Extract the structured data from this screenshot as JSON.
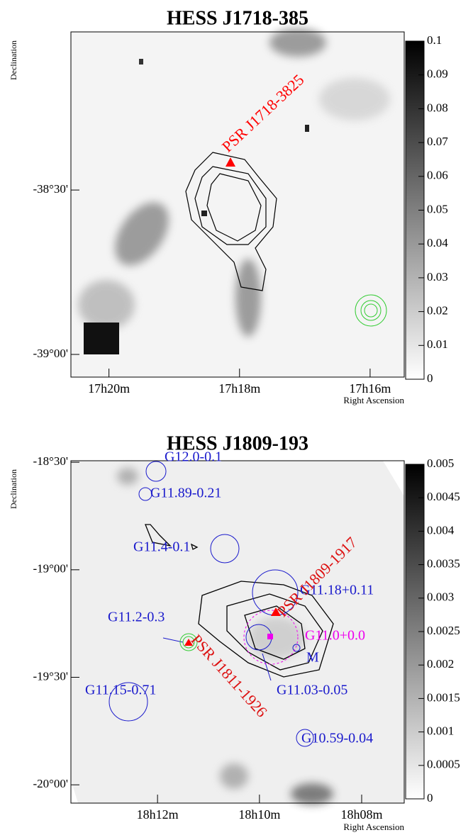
{
  "chart_data": [
    {
      "type": "image",
      "title": "HESS J1718-385",
      "xlabel": "Right Ascension",
      "ylabel": "Declination",
      "xlim": [
        17.343,
        17.258
      ],
      "xticks": [
        {
          "value": 17.3333,
          "label": "17h20m"
        },
        {
          "value": 17.3,
          "label": "17h18m"
        },
        {
          "value": 17.2667,
          "label": "17h16m"
        }
      ],
      "ylim": [
        -39.069,
        -38.019
      ],
      "yticks": [
        {
          "value": -39,
          "label": "-39°00'"
        },
        {
          "value": -38.5,
          "label": "-38°30'"
        }
      ],
      "zlim": [
        0,
        0.1
      ],
      "zticks": [
        0,
        0.01,
        0.02,
        0.03,
        0.04,
        0.05,
        0.06,
        0.07,
        0.08,
        0.09,
        0.1
      ],
      "annotations": [
        {
          "text": "PSR J1718-3825",
          "color": "#ff0000"
        }
      ]
    },
    {
      "type": "image",
      "title": "HESS J1809-193",
      "xlabel": "Right Ascension",
      "ylabel": "Declination",
      "xlim": [
        18.2283,
        18.1194
      ],
      "xticks": [
        {
          "value": 18.2,
          "label": "18h12m"
        },
        {
          "value": 18.1667,
          "label": "18h10m"
        },
        {
          "value": 18.1333,
          "label": "18h08m"
        }
      ],
      "ylim": [
        -20.085,
        -18.493
      ],
      "yticks": [
        {
          "value": -20,
          "label": "-20°00'"
        },
        {
          "value": -19.5,
          "label": "-19°30'"
        },
        {
          "value": -19,
          "label": "-19°00'"
        },
        {
          "value": -18.5,
          "label": "-18°30'"
        }
      ],
      "zlim": [
        0,
        0.005
      ],
      "zticks": [
        0,
        0.0005,
        0.001,
        0.0015,
        0.002,
        0.0025,
        0.003,
        0.0035,
        0.004,
        0.0045,
        0.005
      ],
      "annotations": [
        {
          "text": "G12.0-0.1",
          "color": "#1a1acc"
        },
        {
          "text": "G11.89-0.21",
          "color": "#1a1acc"
        },
        {
          "text": "G11.4-0.1",
          "color": "#1a1acc"
        },
        {
          "text": "G11.18+0.11",
          "color": "#1a1acc"
        },
        {
          "text": "PSR J1809-1917",
          "color": "#dd1111"
        },
        {
          "text": "G11.2-0.3",
          "color": "#1a1acc"
        },
        {
          "text": "G11.0+0.0",
          "color": "#ee00ee"
        },
        {
          "text": "M",
          "color": "#1a1acc"
        },
        {
          "text": "G11.03-0.05",
          "color": "#1a1acc"
        },
        {
          "text": "G11.15-0.71",
          "color": "#1a1acc"
        },
        {
          "text": "G10.59-0.04",
          "color": "#1a1acc"
        },
        {
          "text": "PSR J1811-1926",
          "color": "#dd1111"
        }
      ]
    }
  ]
}
